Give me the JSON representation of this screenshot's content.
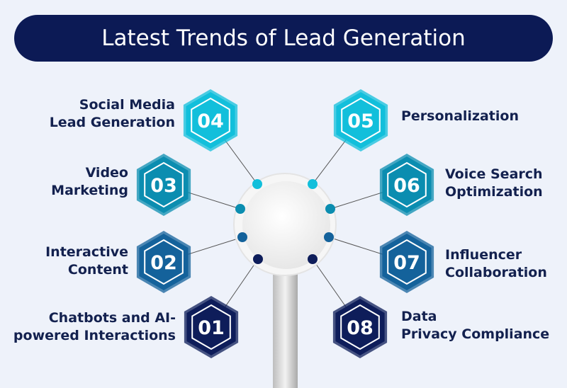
{
  "title": "Latest Trends of Lead Generation",
  "colors": {
    "background": "#eef2fa",
    "title_bar": "#0c1a55",
    "cyan": "#12bfdb",
    "teal": "#0b8db0",
    "blue": "#14629b",
    "navy": "#0e1d5a"
  },
  "items": [
    {
      "number": "01",
      "label": "Chatbots and AI-powered Interactions",
      "line1": "Chatbots and AI-",
      "line2": "powered Interactions",
      "color": "navy"
    },
    {
      "number": "02",
      "label": "Interactive Content",
      "line1": "Interactive",
      "line2": "Content",
      "color": "blue"
    },
    {
      "number": "03",
      "label": "Video Marketing",
      "line1": "Video",
      "line2": "Marketing",
      "color": "teal"
    },
    {
      "number": "04",
      "label": "Social Media Lead Generation",
      "line1": "Social Media",
      "line2": "Lead Generation",
      "color": "cyan"
    },
    {
      "number": "05",
      "label": "Personalization",
      "line1": "Personalization",
      "line2": "",
      "color": "cyan"
    },
    {
      "number": "06",
      "label": "Voice Search Optimization",
      "line1": "Voice Search",
      "line2": "Optimization",
      "color": "teal"
    },
    {
      "number": "07",
      "label": "Influencer Collaboration",
      "line1": "Influencer",
      "line2": "Collaboration",
      "color": "blue"
    },
    {
      "number": "08",
      "label": "Data Privacy Compliance",
      "line1": "Data",
      "line2": "Privacy Compliance",
      "color": "navy"
    }
  ]
}
